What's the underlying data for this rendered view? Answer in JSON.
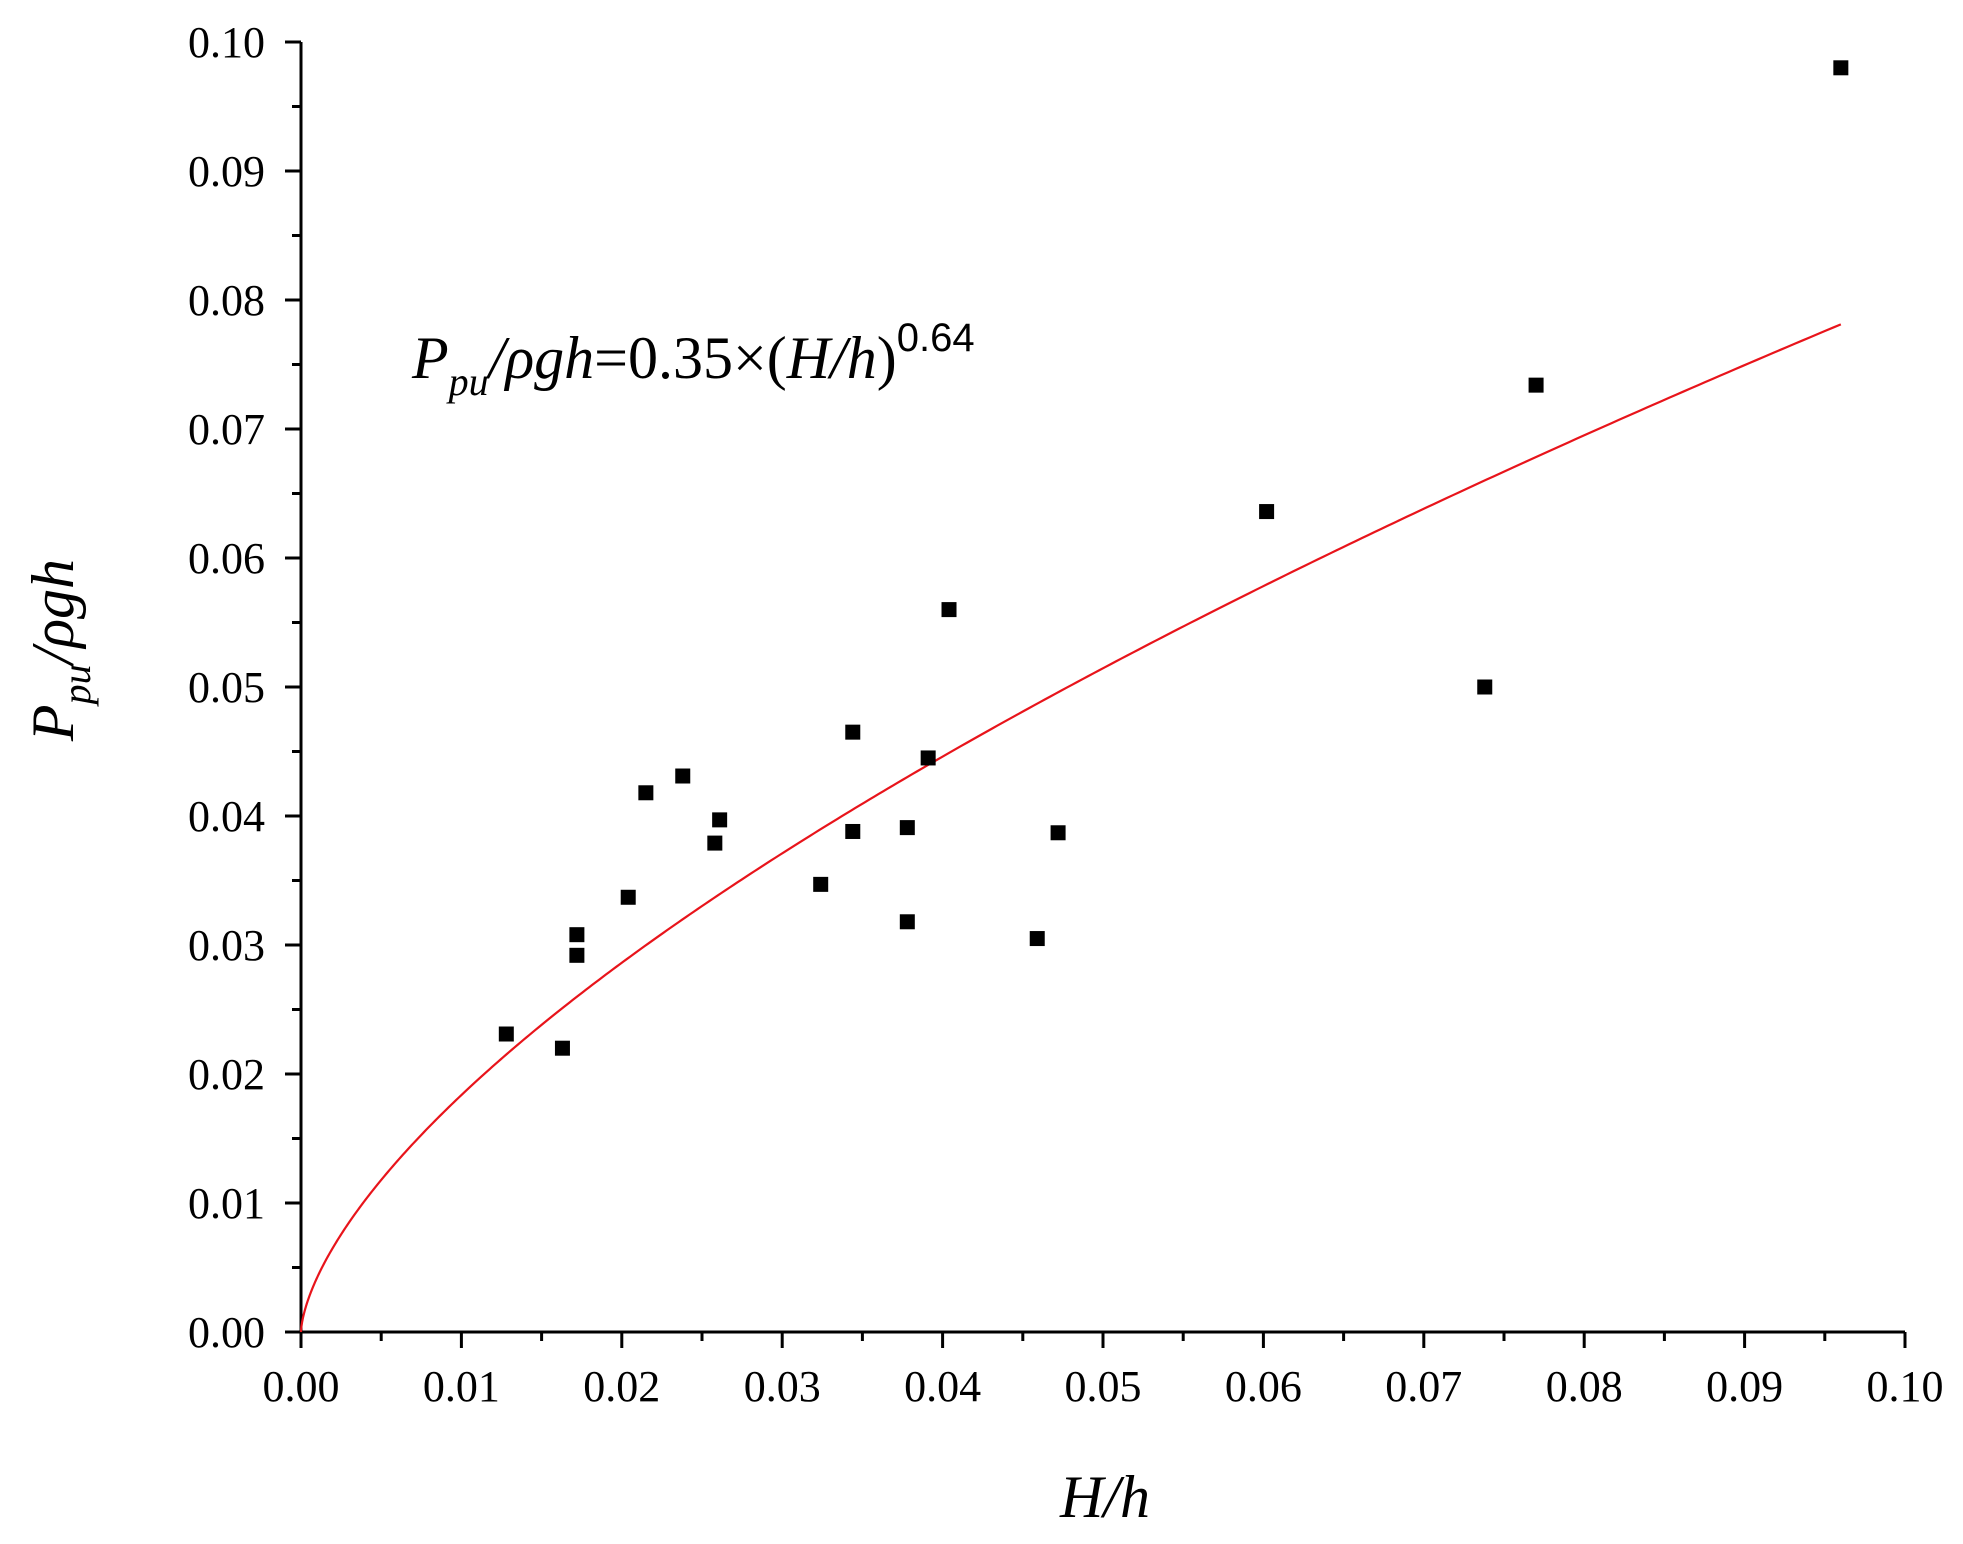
{
  "chart_data": {
    "type": "scatter",
    "xlabel": {
      "main": "H/h"
    },
    "ylabel": {
      "main": "P",
      "sub": "pu",
      "rest": "/ρgh"
    },
    "xlim": [
      0,
      0.1
    ],
    "ylim": [
      0,
      0.1
    ],
    "x_ticks": [
      "0.00",
      "0.01",
      "0.02",
      "0.03",
      "0.04",
      "0.05",
      "0.06",
      "0.07",
      "0.08",
      "0.09",
      "0.10"
    ],
    "y_ticks": [
      "0.00",
      "0.01",
      "0.02",
      "0.03",
      "0.04",
      "0.05",
      "0.06",
      "0.07",
      "0.08",
      "0.09",
      "0.10"
    ],
    "x_tick_values": [
      0,
      0.01,
      0.02,
      0.03,
      0.04,
      0.05,
      0.06,
      0.07,
      0.08,
      0.09,
      0.1
    ],
    "y_tick_values": [
      0,
      0.01,
      0.02,
      0.03,
      0.04,
      0.05,
      0.06,
      0.07,
      0.08,
      0.09,
      0.1
    ],
    "grid": false,
    "series": [
      {
        "marker": "square",
        "color": "#000000",
        "points": [
          [
            0.0128,
            0.0231
          ],
          [
            0.0163,
            0.022
          ],
          [
            0.0172,
            0.0308
          ],
          [
            0.0172,
            0.0292
          ],
          [
            0.0204,
            0.0337
          ],
          [
            0.0215,
            0.0418
          ],
          [
            0.0238,
            0.0431
          ],
          [
            0.0258,
            0.0379
          ],
          [
            0.0261,
            0.0397
          ],
          [
            0.0324,
            0.0347
          ],
          [
            0.0344,
            0.0465
          ],
          [
            0.0344,
            0.0388
          ],
          [
            0.0378,
            0.0391
          ],
          [
            0.0378,
            0.0318
          ],
          [
            0.0391,
            0.0445
          ],
          [
            0.0404,
            0.056
          ],
          [
            0.0459,
            0.0305
          ],
          [
            0.0472,
            0.0387
          ],
          [
            0.0602,
            0.0636
          ],
          [
            0.0738,
            0.05
          ],
          [
            0.077,
            0.0734
          ],
          [
            0.096,
            0.098
          ]
        ]
      },
      {
        "type": "line",
        "color": "#e8141b",
        "function": {
          "coefficient": 0.35,
          "exponent": 0.64,
          "x_range": [
            0,
            0.096
          ]
        }
      }
    ],
    "annotation": {
      "lhs_main": "P",
      "lhs_sub": "pu",
      "lhs_rest": "/ρgh",
      "rhs_start": "=0.35×(",
      "rhs_var": "H/h",
      "rhs_end": ")",
      "exponent": "0.64"
    }
  }
}
